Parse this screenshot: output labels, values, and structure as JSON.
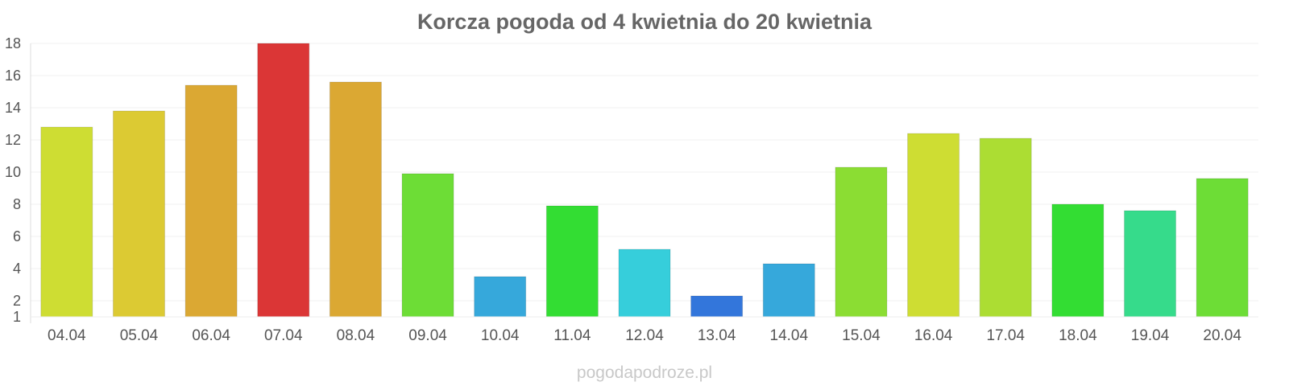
{
  "chart_data": {
    "type": "bar",
    "title": "Korcza pogoda od 4 kwietnia do 20 kwietnia",
    "xlabel": "",
    "ylabel": "",
    "ylim": [
      1,
      18
    ],
    "yticks": [
      1,
      2,
      4,
      6,
      8,
      10,
      12,
      14,
      16,
      18
    ],
    "grid": true,
    "categories": [
      "04.04",
      "05.04",
      "06.04",
      "07.04",
      "08.04",
      "09.04",
      "10.04",
      "11.04",
      "12.04",
      "13.04",
      "14.04",
      "15.04",
      "16.04",
      "17.04",
      "18.04",
      "19.04",
      "20.04"
    ],
    "values": [
      12.8,
      13.8,
      15.4,
      18.0,
      15.6,
      9.9,
      3.5,
      7.9,
      5.2,
      2.3,
      4.3,
      10.3,
      12.4,
      12.1,
      8.0,
      7.6,
      9.6
    ],
    "colors": [
      "#cedd33",
      "#dcca33",
      "#dba833",
      "#db3636",
      "#dba833",
      "#6ddd36",
      "#36a8db",
      "#33dd33",
      "#36cedb",
      "#3376db",
      "#36a8db",
      "#8bdd33",
      "#cedd33",
      "#acdd33",
      "#33dd33",
      "#36db8b",
      "#6ddd36"
    ]
  },
  "watermark": "pogodapodroze.pl"
}
